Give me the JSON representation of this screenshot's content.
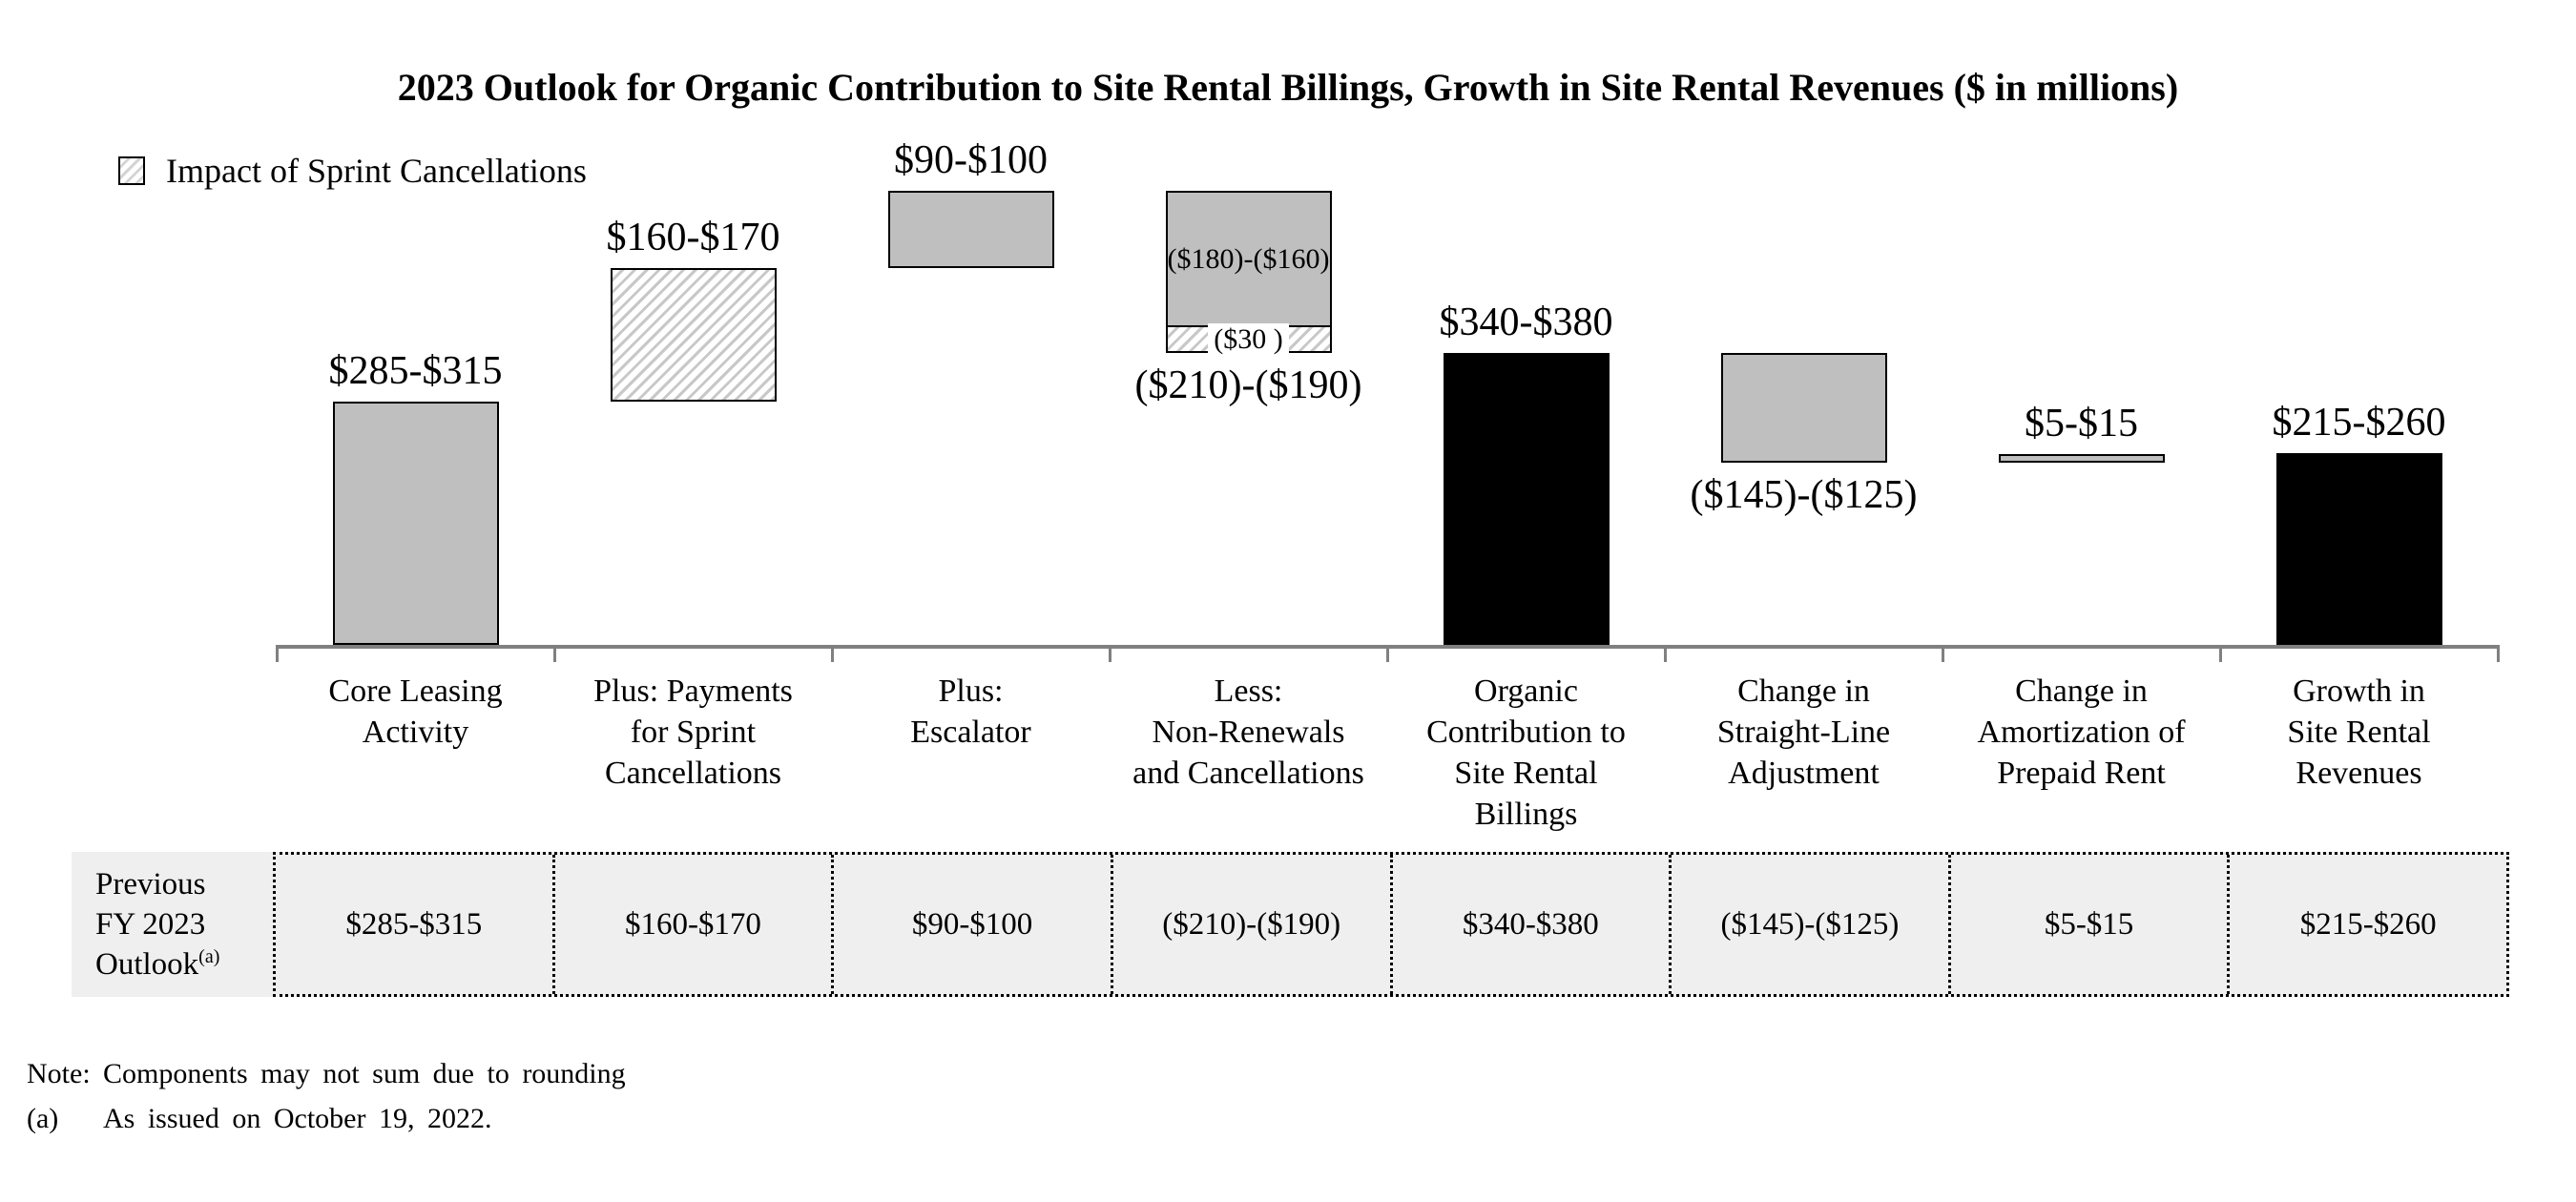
{
  "chart_data": {
    "type": "bar",
    "subtype": "waterfall",
    "title": "2023 Outlook for Organic Contribution to Site Rental Billings, Growth in Site Rental Revenues ($ in millions)",
    "units": "$ in millions",
    "legend": [
      {
        "label": "Impact of Sprint Cancellations",
        "swatch": "hatched"
      }
    ],
    "legend_position": "top-left",
    "grid": false,
    "baseline_value": 0,
    "categories": [
      {
        "lines": [
          "Core Leasing",
          "Activity"
        ]
      },
      {
        "lines": [
          "Plus: Payments",
          "for Sprint",
          "Cancellations"
        ]
      },
      {
        "lines": [
          "Plus:",
          "Escalator"
        ]
      },
      {
        "lines": [
          "Less:",
          "Non-Renewals",
          "and Cancellations"
        ]
      },
      {
        "lines": [
          "Organic",
          "Contribution to",
          "Site Rental",
          "Billings"
        ]
      },
      {
        "lines": [
          "Change in",
          "Straight-Line",
          "Adjustment"
        ]
      },
      {
        "lines": [
          "Change in",
          "Amortization of",
          "Prepaid Rent"
        ]
      },
      {
        "lines": [
          "Growth in",
          "Site Rental",
          "Revenues"
        ]
      }
    ],
    "bars": [
      {
        "value_label": "$285-$315",
        "label_position": "above",
        "range_low": 285,
        "range_high": 315,
        "start": 0,
        "end": 300,
        "fill": "gray"
      },
      {
        "value_label": "$160-$170",
        "label_position": "above",
        "range_low": 160,
        "range_high": 170,
        "start": 300,
        "end": 465,
        "fill": "hatched"
      },
      {
        "value_label": "$90-$100",
        "label_position": "above",
        "range_low": 90,
        "range_high": 100,
        "start": 465,
        "end": 560,
        "fill": "gray"
      },
      {
        "value_label": "($210)-($190)",
        "label_position": "below",
        "range_low": -210,
        "range_high": -190,
        "start": 360,
        "end": 560,
        "fill": "segmented",
        "segments": [
          {
            "label": "($180)-($160)",
            "value": 170,
            "fill": "gray"
          },
          {
            "label": "($30 )",
            "value": 30,
            "fill": "hatched"
          }
        ]
      },
      {
        "value_label": "$340-$380",
        "label_position": "above",
        "range_low": 340,
        "range_high": 380,
        "start": 0,
        "end": 360,
        "fill": "black"
      },
      {
        "value_label": "($145)-($125)",
        "label_position": "below",
        "range_low": -145,
        "range_high": -125,
        "start": 225,
        "end": 360,
        "fill": "gray"
      },
      {
        "value_label": "$5-$15",
        "label_position": "above",
        "range_low": 5,
        "range_high": 15,
        "start": 225,
        "end": 235,
        "fill": "gray"
      },
      {
        "value_label": "$215-$260",
        "label_position": "above",
        "range_low": 215,
        "range_high": 260,
        "start": 0,
        "end": 237,
        "fill": "black"
      }
    ]
  },
  "table": {
    "row_label_lines": [
      "Previous",
      "FY 2023",
      "Outlook"
    ],
    "row_label_superscript": "(a)",
    "values": [
      "$285-$315",
      "$160-$170",
      "$90-$100",
      "($210)-($190)",
      "$340-$380",
      "($145)-($125)",
      "$5-$15",
      "$215-$260"
    ]
  },
  "notes": [
    {
      "prefix": "Note:",
      "text": "Components may not sum due to rounding"
    },
    {
      "prefix": "(a)",
      "text": "As issued on October 19, 2022."
    }
  ],
  "colors": {
    "bar_gray": "#bfbfbf",
    "bar_black": "#000000",
    "hatch_line": "#c8c8c8",
    "axis_gray": "#808080",
    "table_bg": "#efefef"
  }
}
